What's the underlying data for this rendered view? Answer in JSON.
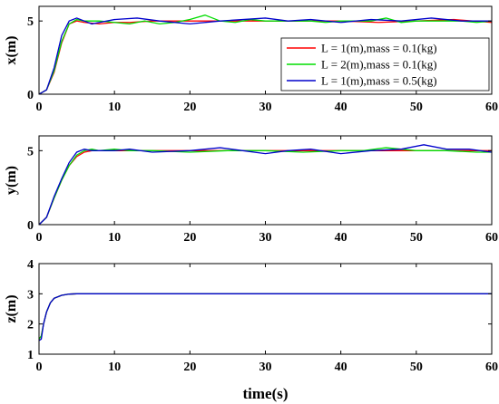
{
  "chart_data": [
    {
      "type": "line",
      "id": "x",
      "ylabel": "x(m)",
      "xlabel": "",
      "xlim": [
        0,
        60
      ],
      "ylim": [
        0,
        6
      ],
      "xticks": [
        0,
        10,
        20,
        30,
        40,
        50,
        60
      ],
      "yticks": [
        0,
        5
      ],
      "legend": "top-right",
      "series": [
        {
          "name": "L = 1(m),mass = 0.1(kg)",
          "color": "#ff0000",
          "x": [
            0,
            1,
            2,
            3,
            4,
            5,
            6,
            8,
            10,
            12,
            15,
            20,
            25,
            30,
            35,
            40,
            45,
            50,
            55,
            60
          ],
          "y": [
            0,
            0.3,
            1.5,
            3.5,
            4.8,
            5.0,
            4.9,
            4.8,
            4.9,
            4.9,
            5.0,
            5.0,
            5.0,
            5.0,
            5.0,
            5.0,
            4.9,
            5.0,
            5.1,
            4.9
          ]
        },
        {
          "name": "L = 2(m),mass = 0.1(kg)",
          "color": "#00dd00",
          "x": [
            0,
            1,
            2,
            3,
            4,
            5,
            6,
            8,
            10,
            12,
            14,
            16,
            18,
            20,
            22,
            24,
            26,
            28,
            30,
            32,
            34,
            36,
            38,
            40,
            42,
            44,
            46,
            48,
            50,
            52,
            54,
            56,
            58,
            60
          ],
          "y": [
            0,
            0.3,
            1.6,
            3.6,
            4.8,
            5.1,
            5.0,
            5.0,
            4.9,
            4.8,
            5.0,
            4.8,
            4.9,
            5.1,
            5.4,
            5.0,
            4.9,
            5.1,
            5.0,
            5.0,
            5.0,
            5.0,
            4.9,
            5.0,
            5.0,
            5.0,
            5.2,
            4.9,
            5.0,
            5.0,
            5.0,
            5.0,
            4.9,
            5.0
          ]
        },
        {
          "name": "L = 1(m),mass = 0.5(kg)",
          "color": "#0000cc",
          "x": [
            0,
            1,
            2,
            3,
            4,
            5,
            6,
            7,
            8,
            10,
            13,
            16,
            20,
            24,
            27,
            30,
            33,
            36,
            40,
            44,
            48,
            52,
            56,
            60
          ],
          "y": [
            0,
            0.3,
            1.8,
            4.0,
            5.0,
            5.2,
            5.0,
            4.8,
            4.9,
            5.1,
            5.2,
            5.0,
            4.8,
            5.0,
            5.1,
            5.2,
            5.0,
            5.1,
            4.9,
            5.1,
            5.0,
            5.2,
            5.0,
            5.0
          ]
        }
      ]
    },
    {
      "type": "line",
      "id": "y",
      "ylabel": "y(m)",
      "xlabel": "",
      "xlim": [
        0,
        60
      ],
      "ylim": [
        0,
        6
      ],
      "xticks": [
        0,
        10,
        20,
        30,
        40,
        50,
        60
      ],
      "yticks": [
        0,
        5
      ],
      "series": [
        {
          "name": "L = 1(m),mass = 0.1(kg)",
          "color": "#ff0000",
          "x": [
            0,
            1,
            2,
            3,
            4,
            5,
            6,
            7,
            8,
            10,
            15,
            20,
            25,
            30,
            35,
            40,
            45,
            50,
            55,
            60
          ],
          "y": [
            0,
            0.5,
            1.8,
            3.0,
            4.0,
            4.6,
            4.9,
            5.0,
            5.0,
            5.0,
            5.0,
            5.0,
            5.0,
            5.0,
            5.0,
            5.0,
            5.0,
            5.0,
            5.0,
            5.0
          ]
        },
        {
          "name": "L = 2(m),mass = 0.1(kg)",
          "color": "#00dd00",
          "x": [
            0,
            1,
            2,
            3,
            4,
            5,
            6,
            7,
            8,
            10,
            12,
            15,
            20,
            25,
            30,
            35,
            40,
            43,
            46,
            50,
            54,
            58,
            60
          ],
          "y": [
            0,
            0.5,
            1.8,
            3.0,
            4.0,
            4.7,
            5.0,
            5.1,
            5.0,
            5.1,
            5.0,
            5.0,
            4.9,
            5.0,
            5.0,
            4.9,
            5.0,
            5.0,
            5.2,
            5.0,
            5.0,
            4.9,
            4.9
          ]
        },
        {
          "name": "L = 1(m),mass = 0.5(kg)",
          "color": "#0000cc",
          "x": [
            0,
            1,
            2,
            3,
            4,
            5,
            6,
            7,
            8,
            10,
            12,
            15,
            20,
            24,
            27,
            30,
            33,
            36,
            40,
            44,
            48,
            51,
            54,
            57,
            60
          ],
          "y": [
            0,
            0.5,
            1.9,
            3.1,
            4.2,
            4.9,
            5.1,
            5.0,
            5.0,
            5.0,
            5.1,
            4.9,
            5.0,
            5.2,
            5.0,
            4.8,
            5.0,
            5.1,
            4.8,
            5.0,
            5.1,
            5.4,
            5.1,
            5.1,
            4.9
          ]
        }
      ]
    },
    {
      "type": "line",
      "id": "z",
      "ylabel": "z(m)",
      "xlabel": "time(s)",
      "xlim": [
        0,
        60
      ],
      "ylim": [
        1,
        4
      ],
      "xticks": [
        0,
        10,
        20,
        30,
        40,
        50,
        60
      ],
      "yticks": [
        1,
        2,
        3,
        4
      ],
      "series": [
        {
          "name": "L = 1(m),mass = 0.1(kg)",
          "color": "#ff0000",
          "x": [
            0,
            0.3,
            0.6,
            1,
            1.5,
            2,
            3,
            4,
            5,
            6,
            10,
            20,
            30,
            40,
            50,
            60
          ],
          "y": [
            1.5,
            1.6,
            2.0,
            2.4,
            2.7,
            2.85,
            2.95,
            2.99,
            3.0,
            3.0,
            3.0,
            3.0,
            3.0,
            3.0,
            3.0,
            3.0
          ]
        },
        {
          "name": "L = 2(m),mass = 0.1(kg)",
          "color": "#00dd00",
          "x": [
            0,
            0.3,
            0.6,
            1,
            1.5,
            2,
            3,
            4,
            5,
            6,
            10,
            20,
            30,
            40,
            50,
            60
          ],
          "y": [
            1.5,
            1.6,
            2.0,
            2.4,
            2.7,
            2.85,
            2.95,
            2.99,
            3.0,
            3.0,
            3.0,
            3.0,
            3.0,
            3.0,
            3.0,
            3.0
          ]
        },
        {
          "name": "L = 1(m),mass = 0.5(kg)",
          "color": "#0000cc",
          "x": [
            0,
            0.3,
            0.6,
            1,
            1.5,
            2,
            3,
            4,
            5,
            6,
            10,
            20,
            30,
            40,
            50,
            60
          ],
          "y": [
            1.45,
            1.5,
            2.0,
            2.4,
            2.7,
            2.85,
            2.95,
            2.99,
            3.0,
            3.0,
            3.0,
            3.0,
            3.0,
            3.0,
            3.0,
            3.0
          ]
        }
      ]
    }
  ]
}
